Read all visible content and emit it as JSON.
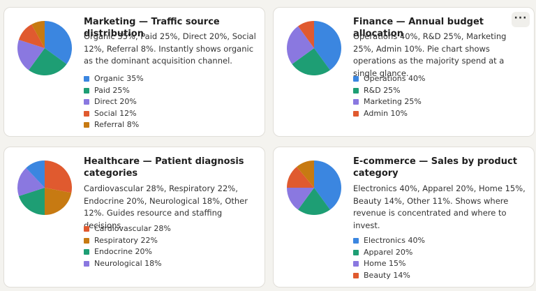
{
  "cards": [
    {
      "title": "Marketing — Traffic source distribution",
      "description": "Organic 35%, Paid 25%, Direct 20%, Social 12%, Referral 8%. Instantly shows organic as the dominant acquisition channel.",
      "legend": [
        "Organic 35%",
        "Paid 25%",
        "Direct 20%",
        "Social 12%",
        "Referral 8%"
      ]
    },
    {
      "title": "Finance — Annual budget allocation",
      "description": "Operations 40%, R&D 25%, Marketing 25%, Admin 10%. Pie chart shows operations as the majority spend at a single glance.",
      "legend": [
        "Operations 40%",
        "R&D 25%",
        "Marketing 25%",
        "Admin 10%"
      ],
      "more_label": "···"
    },
    {
      "title": "Healthcare — Patient diagnosis categories",
      "description": "Cardiovascular 28%, Respiratory 22%, Endocrine 20%, Neurological 18%, Other 12%. Guides resource and staffing decisions.",
      "legend": [
        "Cardiovascular 28%",
        "Respiratory 22%",
        "Endocrine 20%",
        "Neurological 18%"
      ]
    },
    {
      "title": "E-commerce — Sales by product category",
      "description": "Electronics 40%, Apparel 20%, Home 15%, Beauty 14%, Other 11%. Shows where revenue is concentrated and where to invest.",
      "legend": [
        "Electronics 40%",
        "Apparel 20%",
        "Home 15%",
        "Beauty 14%"
      ]
    }
  ],
  "chart_data": [
    {
      "type": "pie",
      "categories": [
        "Organic",
        "Paid",
        "Direct",
        "Social",
        "Referral"
      ],
      "values": [
        35,
        25,
        20,
        12,
        8
      ],
      "colors": [
        "#3b86e0",
        "#1e9e74",
        "#8a78e0",
        "#e05a2f",
        "#c77a12"
      ]
    },
    {
      "type": "pie",
      "categories": [
        "Operations",
        "R&D",
        "Marketing",
        "Admin"
      ],
      "values": [
        40,
        25,
        25,
        10
      ],
      "colors": [
        "#3b86e0",
        "#1e9e74",
        "#8a78e0",
        "#e05a2f"
      ]
    },
    {
      "type": "pie",
      "categories": [
        "Cardiovascular",
        "Respiratory",
        "Endocrine",
        "Neurological",
        "Other"
      ],
      "values": [
        28,
        22,
        20,
        18,
        12
      ],
      "colors": [
        "#e05a2f",
        "#c77a12",
        "#1e9e74",
        "#8a78e0",
        "#3b86e0"
      ]
    },
    {
      "type": "pie",
      "categories": [
        "Electronics",
        "Apparel",
        "Home",
        "Beauty",
        "Other"
      ],
      "values": [
        40,
        20,
        15,
        14,
        11
      ],
      "colors": [
        "#3b86e0",
        "#1e9e74",
        "#8a78e0",
        "#e05a2f",
        "#c77a12"
      ]
    }
  ],
  "icons": {
    "more": "more-horizontal-icon"
  }
}
